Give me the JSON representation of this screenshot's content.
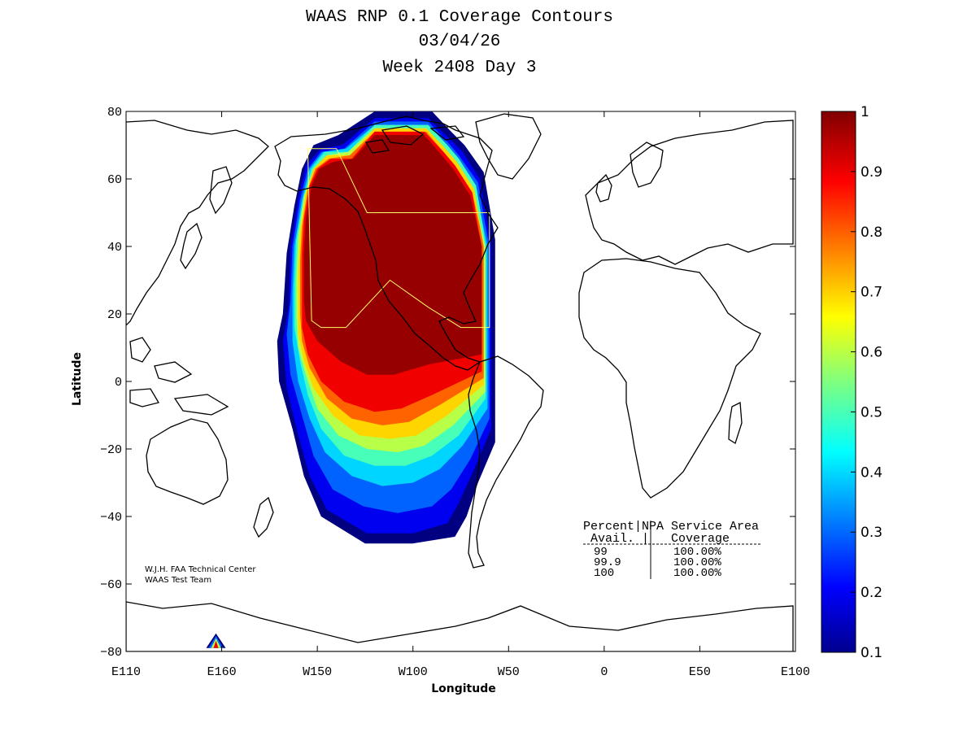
{
  "chart_data": {
    "type": "heatmap",
    "title_lines": [
      "WAAS RNP 0.1 Coverage Contours",
      "03/04/26",
      "Week 2408 Day 3"
    ],
    "xlabel": "Longitude",
    "ylabel": "Latitude",
    "xlim": [
      -250,
      100
    ],
    "ylim": [
      -80,
      80
    ],
    "x_ticks": [
      {
        "value": -250,
        "label": "E110"
      },
      {
        "value": -200,
        "label": "E160"
      },
      {
        "value": -150,
        "label": "W150"
      },
      {
        "value": -100,
        "label": "W100"
      },
      {
        "value": -50,
        "label": "W50"
      },
      {
        "value": 0,
        "label": "0"
      },
      {
        "value": 50,
        "label": "E50"
      },
      {
        "value": 100,
        "label": "E100"
      }
    ],
    "y_ticks": [
      {
        "value": 80,
        "label": "80"
      },
      {
        "value": 60,
        "label": "60"
      },
      {
        "value": 40,
        "label": "40"
      },
      {
        "value": 20,
        "label": "20"
      },
      {
        "value": 0,
        "label": "0"
      },
      {
        "value": -20,
        "label": "−20"
      },
      {
        "value": -40,
        "label": "−40"
      },
      {
        "value": -60,
        "label": "−60"
      },
      {
        "value": -80,
        "label": "−80"
      }
    ],
    "colorbar": {
      "min": 0.1,
      "max": 1,
      "ticks": [
        {
          "value": 1,
          "label": "1"
        },
        {
          "value": 0.9,
          "label": "0.9"
        },
        {
          "value": 0.8,
          "label": "0.8"
        },
        {
          "value": 0.7,
          "label": "0.7"
        },
        {
          "value": 0.6,
          "label": "0.6"
        },
        {
          "value": 0.5,
          "label": "0.5"
        },
        {
          "value": 0.4,
          "label": "0.4"
        },
        {
          "value": 0.3,
          "label": "0.3"
        },
        {
          "value": 0.2,
          "label": "0.2"
        },
        {
          "value": 0.1,
          "label": "0.1"
        }
      ]
    },
    "coverage_contours": [
      {
        "level": 0.1,
        "points": [
          [
            -139,
            73
          ],
          [
            -120,
            80
          ],
          [
            -90,
            80
          ],
          [
            -80,
            74
          ],
          [
            -73,
            70
          ],
          [
            -63,
            62
          ],
          [
            -60,
            52
          ],
          [
            -57,
            42
          ],
          [
            -57,
            -18
          ],
          [
            -66,
            -30
          ],
          [
            -72,
            -40
          ],
          [
            -78,
            -46
          ],
          [
            -100,
            -48
          ],
          [
            -125,
            -48
          ],
          [
            -148,
            -40
          ],
          [
            -157,
            -28
          ],
          [
            -163,
            -14
          ],
          [
            -170,
            0
          ],
          [
            -171,
            12
          ],
          [
            -168,
            20
          ],
          [
            -166,
            38
          ],
          [
            -162,
            52
          ],
          [
            -158,
            63
          ],
          [
            -152,
            70
          ]
        ]
      },
      {
        "level": 0.2,
        "points": [
          [
            -137,
            70
          ],
          [
            -120,
            78
          ],
          [
            -92,
            78
          ],
          [
            -81,
            72
          ],
          [
            -74,
            68
          ],
          [
            -65,
            60
          ],
          [
            -62,
            50
          ],
          [
            -59,
            40
          ],
          [
            -59,
            -14
          ],
          [
            -68,
            -26
          ],
          [
            -76,
            -36
          ],
          [
            -82,
            -42
          ],
          [
            -100,
            -45
          ],
          [
            -124,
            -45
          ],
          [
            -145,
            -38
          ],
          [
            -154,
            -28
          ],
          [
            -160,
            -16
          ],
          [
            -166,
            -2
          ],
          [
            -168,
            12
          ],
          [
            -165,
            22
          ],
          [
            -164,
            40
          ],
          [
            -160,
            54
          ],
          [
            -156,
            64
          ],
          [
            -148,
            69
          ]
        ]
      },
      {
        "level": 0.3,
        "points": [
          [
            -136,
            69
          ],
          [
            -120,
            77
          ],
          [
            -92,
            77
          ],
          [
            -82,
            71
          ],
          [
            -76,
            67
          ],
          [
            -66,
            59
          ],
          [
            -63,
            49
          ],
          [
            -60,
            40
          ],
          [
            -60,
            -11
          ],
          [
            -70,
            -23
          ],
          [
            -80,
            -32
          ],
          [
            -90,
            -37
          ],
          [
            -108,
            -39
          ],
          [
            -126,
            -37
          ],
          [
            -142,
            -32
          ],
          [
            -152,
            -22
          ],
          [
            -158,
            -10
          ],
          [
            -164,
            2
          ],
          [
            -166,
            14
          ],
          [
            -164,
            24
          ],
          [
            -163,
            40
          ],
          [
            -159,
            54
          ],
          [
            -155,
            63
          ],
          [
            -148,
            68
          ]
        ]
      },
      {
        "level": 0.4,
        "points": [
          [
            -135,
            69
          ],
          [
            -120,
            76
          ],
          [
            -92,
            76
          ],
          [
            -82,
            70
          ],
          [
            -76,
            66
          ],
          [
            -67,
            58
          ],
          [
            -64,
            48
          ],
          [
            -61,
            40
          ],
          [
            -61,
            -8
          ],
          [
            -74,
            -19
          ],
          [
            -86,
            -26
          ],
          [
            -100,
            -30
          ],
          [
            -116,
            -31
          ],
          [
            -132,
            -28
          ],
          [
            -146,
            -21
          ],
          [
            -154,
            -11
          ],
          [
            -160,
            0
          ],
          [
            -163,
            12
          ],
          [
            -163,
            26
          ],
          [
            -162,
            40
          ],
          [
            -158,
            54
          ],
          [
            -154,
            63
          ],
          [
            -147,
            68
          ]
        ]
      },
      {
        "level": 0.5,
        "points": [
          [
            -134,
            68
          ],
          [
            -120,
            76
          ],
          [
            -92,
            76
          ],
          [
            -82,
            70
          ],
          [
            -76,
            66
          ],
          [
            -67,
            58
          ],
          [
            -64,
            48
          ],
          [
            -62,
            40
          ],
          [
            -62,
            -5
          ],
          [
            -76,
            -16
          ],
          [
            -90,
            -22
          ],
          [
            -104,
            -25
          ],
          [
            -120,
            -25
          ],
          [
            -136,
            -22
          ],
          [
            -148,
            -14
          ],
          [
            -155,
            -4
          ],
          [
            -159,
            6
          ],
          [
            -162,
            16
          ],
          [
            -162,
            28
          ],
          [
            -161,
            42
          ],
          [
            -157,
            55
          ],
          [
            -153,
            63
          ],
          [
            -146,
            68
          ]
        ]
      },
      {
        "level": 0.6,
        "points": [
          [
            -134,
            68
          ],
          [
            -120,
            75
          ],
          [
            -93,
            75
          ],
          [
            -83,
            69
          ],
          [
            -77,
            65
          ],
          [
            -68,
            57
          ],
          [
            -65,
            47
          ],
          [
            -62,
            40
          ],
          [
            -62,
            -3
          ],
          [
            -79,
            -13
          ],
          [
            -94,
            -19
          ],
          [
            -108,
            -21
          ],
          [
            -124,
            -20
          ],
          [
            -139,
            -16
          ],
          [
            -150,
            -8
          ],
          [
            -156,
            2
          ],
          [
            -160,
            10
          ],
          [
            -161,
            20
          ],
          [
            -161,
            30
          ],
          [
            -160,
            43
          ],
          [
            -157,
            55
          ],
          [
            -152,
            63
          ],
          [
            -145,
            67
          ]
        ]
      },
      {
        "level": 0.7,
        "points": [
          [
            -133,
            67
          ],
          [
            -120,
            75
          ],
          [
            -93,
            75
          ],
          [
            -83,
            69
          ],
          [
            -77,
            65
          ],
          [
            -68,
            57
          ],
          [
            -65,
            47
          ],
          [
            -63,
            40
          ],
          [
            -63,
            -1
          ],
          [
            -82,
            -10
          ],
          [
            -98,
            -16
          ],
          [
            -112,
            -17
          ],
          [
            -128,
            -16
          ],
          [
            -142,
            -10
          ],
          [
            -152,
            -2
          ],
          [
            -157,
            6
          ],
          [
            -160,
            14
          ],
          [
            -160,
            24
          ],
          [
            -160,
            33
          ],
          [
            -159,
            44
          ],
          [
            -156,
            56
          ],
          [
            -152,
            63
          ],
          [
            -145,
            67
          ]
        ]
      },
      {
        "level": 0.8,
        "points": [
          [
            -133,
            67
          ],
          [
            -120,
            74
          ],
          [
            -93,
            74
          ],
          [
            -84,
            68
          ],
          [
            -78,
            64
          ],
          [
            -69,
            56
          ],
          [
            -65,
            46
          ],
          [
            -63,
            40
          ],
          [
            -63,
            1
          ],
          [
            -86,
            -7
          ],
          [
            -102,
            -12
          ],
          [
            -116,
            -13
          ],
          [
            -132,
            -11
          ],
          [
            -145,
            -5
          ],
          [
            -154,
            4
          ],
          [
            -158,
            12
          ],
          [
            -159,
            20
          ],
          [
            -159,
            27
          ],
          [
            -159,
            36
          ],
          [
            -158,
            46
          ],
          [
            -155,
            57
          ],
          [
            -151,
            63
          ],
          [
            -144,
            66
          ]
        ]
      },
      {
        "level": 0.9,
        "points": [
          [
            -132,
            66
          ],
          [
            -120,
            74
          ],
          [
            -94,
            74
          ],
          [
            -84,
            68
          ],
          [
            -78,
            64
          ],
          [
            -69,
            56
          ],
          [
            -66,
            46
          ],
          [
            -64,
            40
          ],
          [
            -64,
            3
          ],
          [
            -90,
            -4
          ],
          [
            -106,
            -8
          ],
          [
            -120,
            -9
          ],
          [
            -136,
            -6
          ],
          [
            -148,
            0
          ],
          [
            -155,
            8
          ],
          [
            -158,
            16
          ],
          [
            -158,
            24
          ],
          [
            -158,
            30
          ],
          [
            -158,
            38
          ],
          [
            -157,
            48
          ],
          [
            -154,
            58
          ],
          [
            -150,
            63
          ],
          [
            -143,
            66
          ]
        ]
      },
      {
        "level": 0.98,
        "points": [
          [
            -131,
            66
          ],
          [
            -120,
            73
          ],
          [
            -94,
            73
          ],
          [
            -85,
            67
          ],
          [
            -79,
            63
          ],
          [
            -70,
            55
          ],
          [
            -66,
            45
          ],
          [
            -64,
            40
          ],
          [
            -64,
            8
          ],
          [
            -92,
            5
          ],
          [
            -110,
            2
          ],
          [
            -124,
            2
          ],
          [
            -138,
            6
          ],
          [
            -150,
            12
          ],
          [
            -156,
            18
          ],
          [
            -157,
            24
          ],
          [
            -157,
            30
          ],
          [
            -157,
            38
          ],
          [
            -156,
            48
          ],
          [
            -153,
            58
          ],
          [
            -149,
            63
          ],
          [
            -142,
            65
          ]
        ]
      }
    ],
    "secondary_blob": {
      "level": 0.1,
      "center": [
        -203,
        -78
      ]
    },
    "service_area_boundary": [
      [
        -155,
        69
      ],
      [
        -140,
        69
      ],
      [
        -124,
        50
      ],
      [
        -80,
        50
      ],
      [
        -60,
        50
      ],
      [
        -60,
        16
      ],
      [
        -75,
        16
      ],
      [
        -92,
        22
      ],
      [
        -112,
        30
      ],
      [
        -135,
        16
      ],
      [
        -148,
        16
      ],
      [
        -153,
        18
      ],
      [
        -155,
        69
      ]
    ],
    "legend": {
      "header": [
        "Percent|NPA Service Area",
        " Avail. |   Coverage"
      ],
      "rows": [
        {
          "avail": "99",
          "coverage": "100.00%"
        },
        {
          "avail": "99.9",
          "coverage": "100.00%"
        },
        {
          "avail": "100",
          "coverage": "100.00%"
        }
      ]
    },
    "credits": [
      "W.J.H. FAA Technical Center",
      "WAAS Test Team"
    ]
  }
}
